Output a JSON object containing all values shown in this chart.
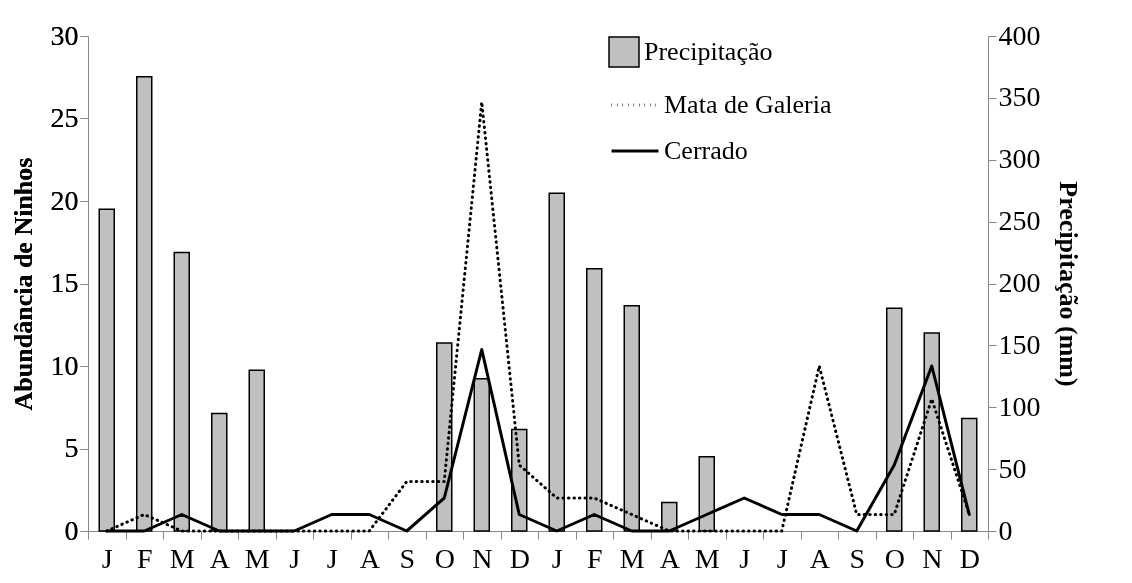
{
  "chart_data": {
    "type": "bar",
    "ylabel": "Abundância de Ninhos",
    "y2label": "Precipitação (mm)",
    "categories": [
      "J",
      "F",
      "M",
      "A",
      "M",
      "J",
      "J",
      "A",
      "S",
      "O",
      "N",
      "D",
      "J",
      "F",
      "M",
      "A",
      "M",
      "J",
      "J",
      "A",
      "S",
      "O",
      "N",
      "D"
    ],
    "series": [
      {
        "name": "Precipitação",
        "axis": "y2",
        "color": "#c0c0c0",
        "values": [
          260,
          367,
          225,
          95,
          130,
          0,
          0,
          0,
          0,
          152,
          123,
          82,
          273,
          212,
          182,
          23,
          60,
          0,
          0,
          0,
          0,
          180,
          160,
          91
        ]
      },
      {
        "name": "Mata de Galeria",
        "type": "line",
        "line_style": "dotted",
        "color": "#000000",
        "values": [
          0,
          1,
          0,
          0,
          0,
          0,
          0,
          0,
          3,
          3,
          26,
          4,
          2,
          2,
          1,
          0,
          0,
          0,
          0,
          10,
          1,
          1,
          8,
          1
        ]
      },
      {
        "name": "Cerrado",
        "type": "line",
        "line_style": "solid",
        "color": "#000000",
        "values": [
          0,
          0,
          1,
          0,
          0,
          0,
          1,
          1,
          0,
          2,
          11,
          1,
          0,
          1,
          0,
          0,
          1,
          2,
          1,
          1,
          0,
          4,
          10,
          1
        ]
      }
    ],
    "ylim": [
      0,
      30
    ],
    "yticks": [
      0,
      5,
      10,
      15,
      20,
      25,
      30
    ],
    "y2lim": [
      0,
      400
    ],
    "y2ticks": [
      0,
      50,
      100,
      150,
      200,
      250,
      300,
      350,
      400
    ],
    "grid": false,
    "legend": "top right"
  }
}
